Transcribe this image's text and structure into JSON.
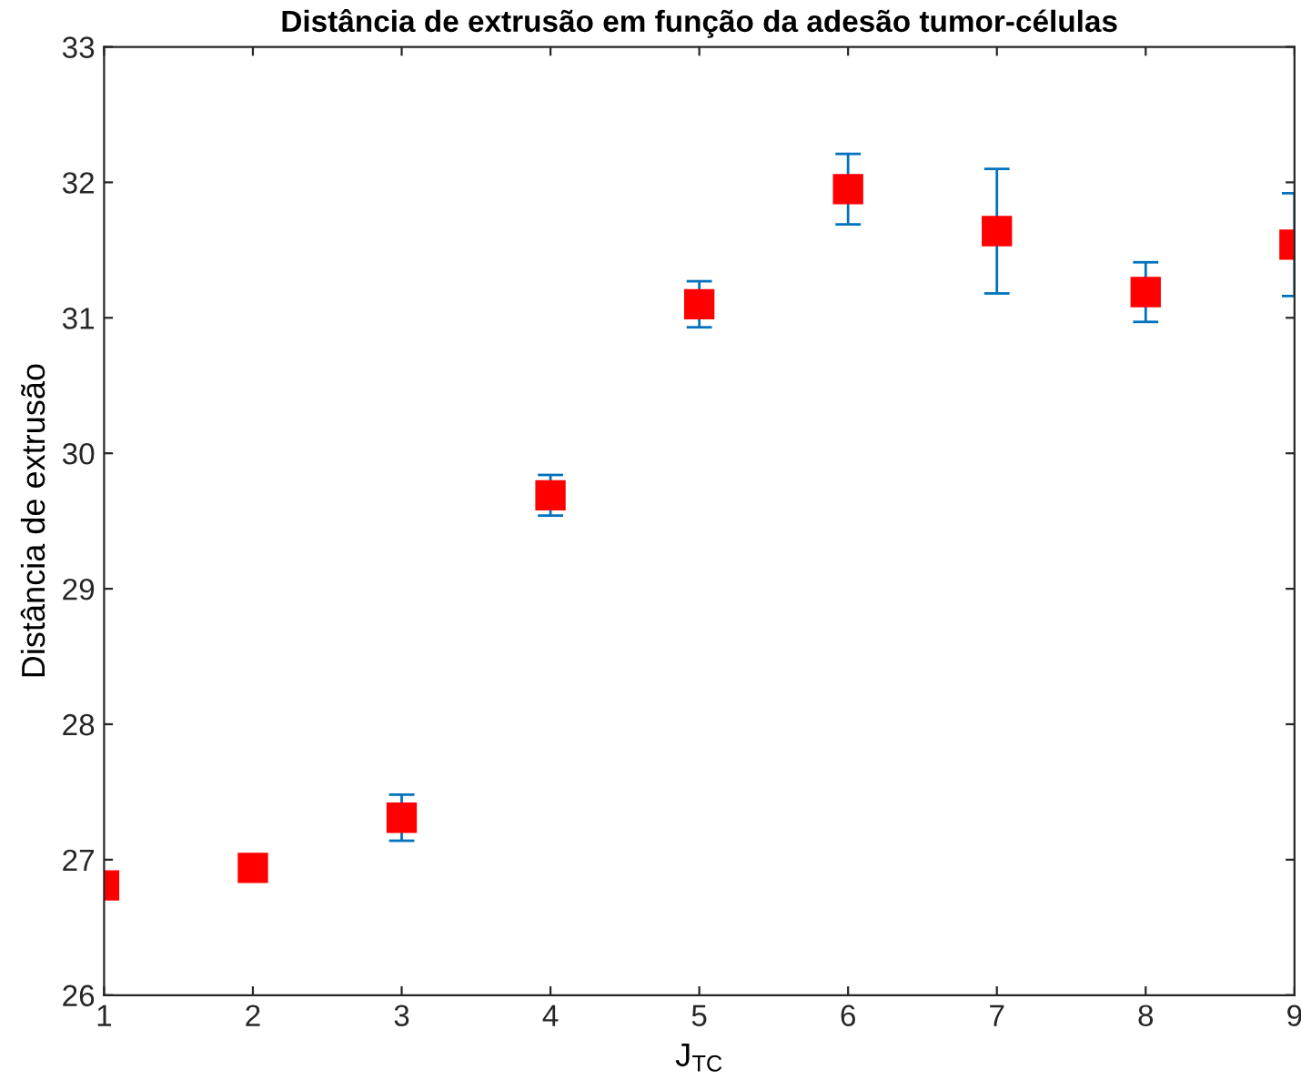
{
  "chart_data": {
    "type": "scatter",
    "title": "Distância de extrusão em função da adesão tumor-células",
    "xlabel": "J$_{TC}$",
    "ylabel": "Distância de extrusão",
    "x": [
      1,
      2,
      3,
      4,
      5,
      6,
      7,
      8,
      9
    ],
    "series": [
      {
        "color": "#ff0000",
        "values": [
          26.81,
          26.94,
          27.31,
          29.69,
          31.1,
          31.95,
          31.64,
          31.19,
          31.54
        ],
        "errors": [
          null,
          null,
          0.17,
          0.15,
          0.17,
          0.26,
          0.46,
          0.22,
          0.38
        ]
      }
    ],
    "marker": "square",
    "xlim": [
      1,
      9
    ],
    "ylim": [
      26,
      33
    ],
    "xticks": [
      1,
      2,
      3,
      4,
      5,
      6,
      7,
      8,
      9
    ],
    "yticks": [
      26,
      27,
      28,
      29,
      30,
      31,
      32,
      33
    ],
    "grid": false,
    "legend": false
  }
}
